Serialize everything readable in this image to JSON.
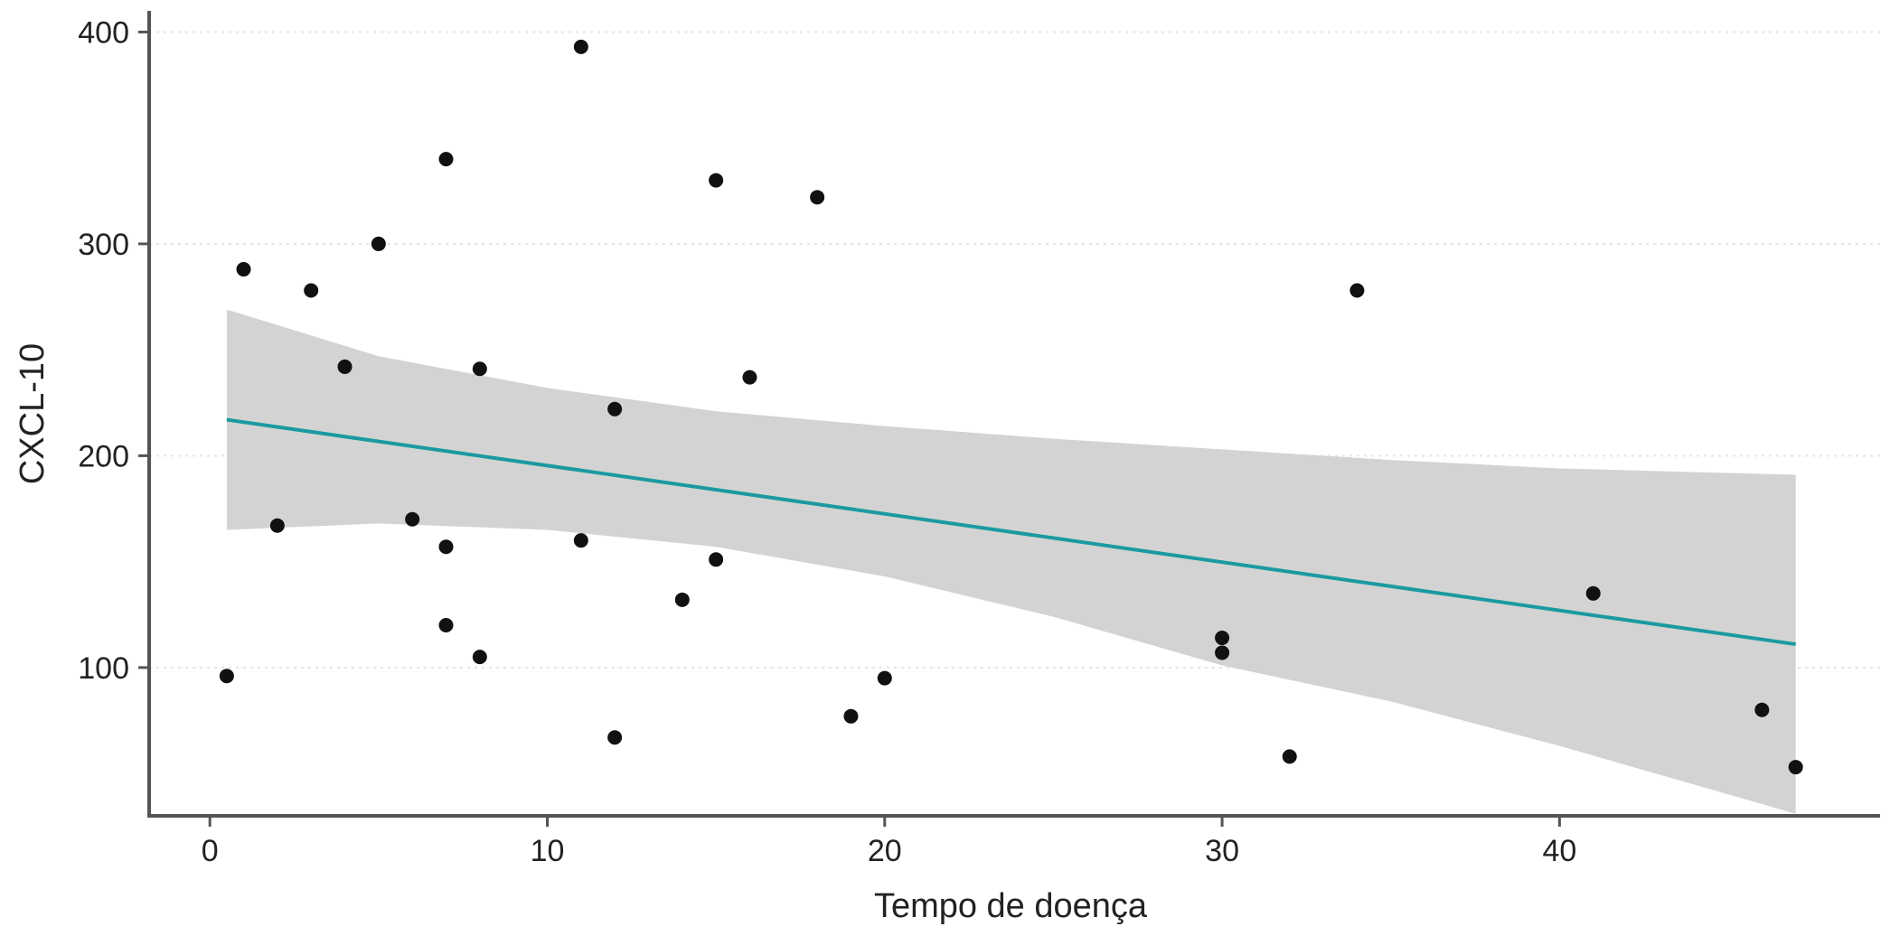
{
  "chart_data": {
    "type": "scatter",
    "title": "",
    "xlabel": "Tempo de doença",
    "ylabel": "CXCL-10",
    "xlim": [
      -1.8,
      49.5
    ],
    "ylim": [
      30,
      410
    ],
    "xticks": [
      0,
      10,
      20,
      30,
      40
    ],
    "yticks": [
      100,
      200,
      300,
      400
    ],
    "grid": "major horizontal, dotted",
    "legend": "none",
    "colors": {
      "points": "#111111",
      "fit_line": "#1a9aa0",
      "confidence_band": "#d3d3d3",
      "axis": "#555555"
    },
    "series": [
      {
        "x": [
          0.5,
          1,
          2,
          3,
          4,
          5,
          6,
          7,
          7,
          7,
          8,
          8,
          11,
          11,
          12,
          12,
          14,
          15,
          15,
          16,
          18,
          19,
          20,
          30,
          30,
          32,
          34,
          41,
          46,
          47
        ],
        "y": [
          96,
          288,
          167,
          278,
          242,
          300,
          170,
          340,
          157,
          120,
          105,
          241,
          393,
          160,
          222,
          67,
          132,
          151,
          330,
          237,
          322,
          77,
          95,
          114,
          107,
          58,
          278,
          135,
          80,
          53
        ]
      }
    ],
    "fit": {
      "method": "linear",
      "x": [
        0.5,
        47
      ],
      "y": [
        217,
        111
      ],
      "band_x": [
        0.5,
        5,
        10,
        15,
        20,
        25,
        30,
        35,
        40,
        47
      ],
      "band_lower": [
        165,
        168,
        165,
        157,
        143,
        124,
        101,
        84,
        63,
        31
      ],
      "band_upper": [
        269,
        247,
        232,
        221,
        214,
        208,
        203,
        198,
        194,
        191
      ]
    }
  }
}
